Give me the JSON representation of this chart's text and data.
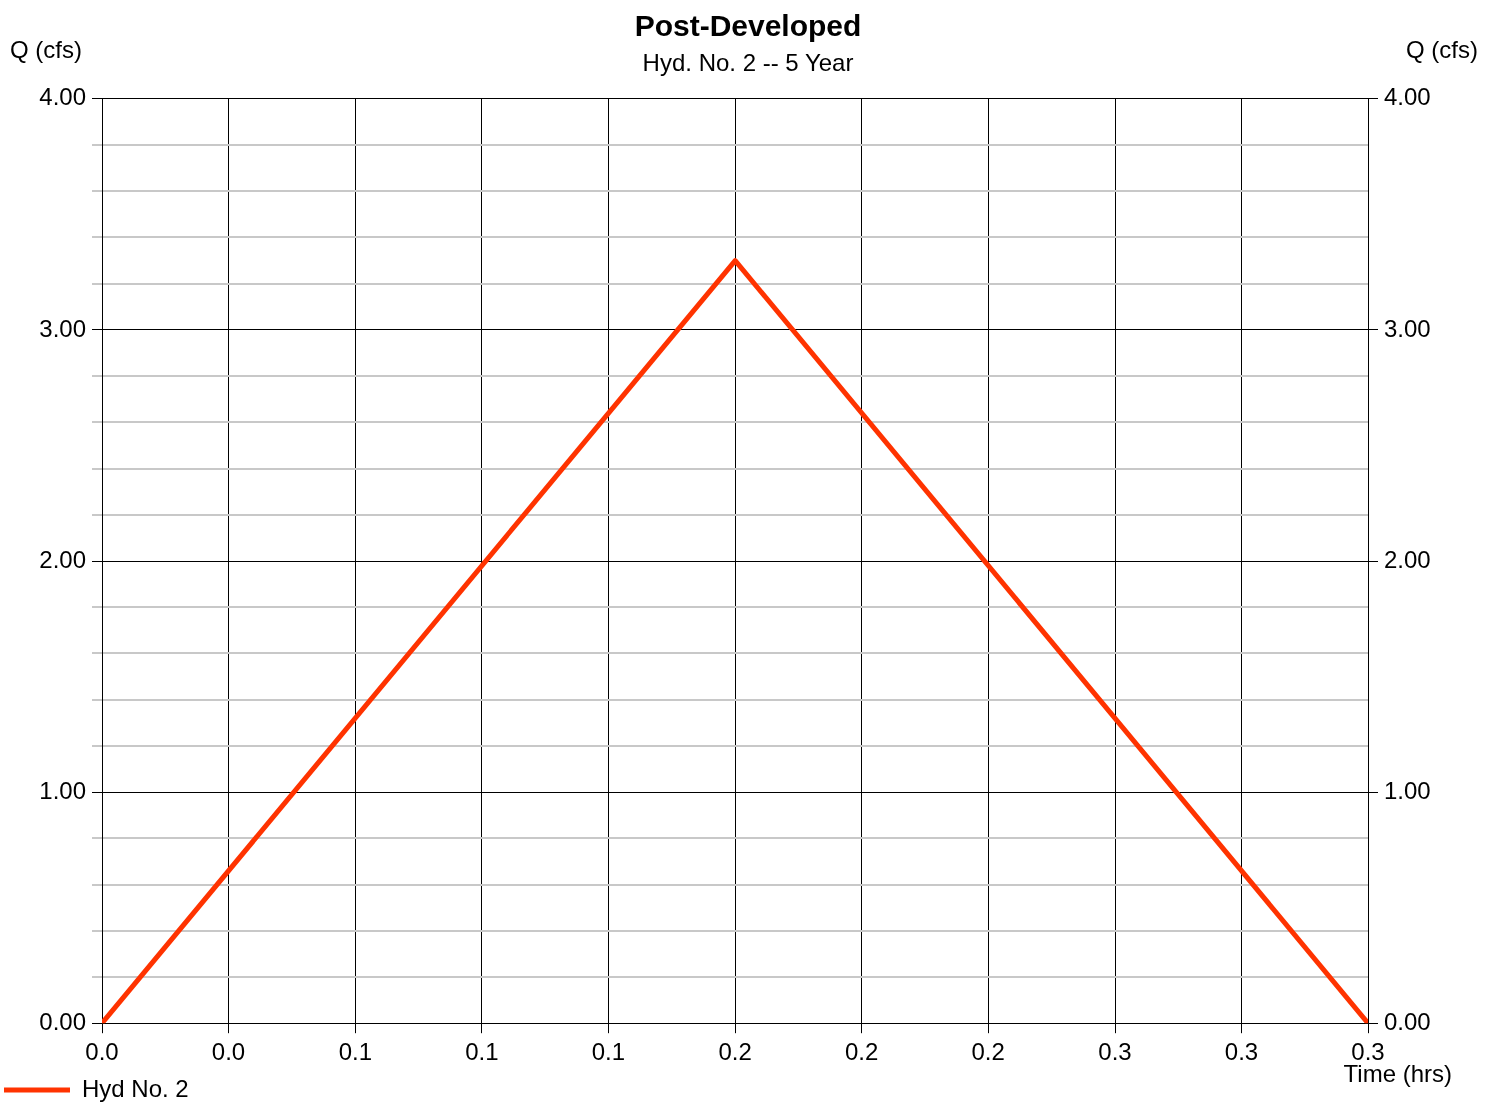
{
  "chart_data": {
    "type": "line",
    "title": "Post-Developed",
    "subtitle": "Hyd. No. 2 -- 5 Year",
    "xlabel": "Time (hrs)",
    "ylabel": "Q (cfs)",
    "y2label": "Q (cfs)",
    "x": [
      0,
      0.1667,
      0.3333
    ],
    "series": [
      {
        "name": "Hyd No. 2",
        "color": "#ff3300",
        "values": [
          0,
          3.3,
          0
        ]
      }
    ],
    "xlim": [
      0,
      0.3333
    ],
    "xticks": [
      {
        "value": 0,
        "label": "0.0"
      },
      {
        "value": 0.0333,
        "label": "0.0"
      },
      {
        "value": 0.0667,
        "label": "0.1"
      },
      {
        "value": 0.1,
        "label": "0.1"
      },
      {
        "value": 0.1333,
        "label": "0.1"
      },
      {
        "value": 0.1667,
        "label": "0.2"
      },
      {
        "value": 0.2,
        "label": "0.2"
      },
      {
        "value": 0.2333,
        "label": "0.2"
      },
      {
        "value": 0.2667,
        "label": "0.3"
      },
      {
        "value": 0.3,
        "label": "0.3"
      },
      {
        "value": 0.3333,
        "label": "0.3"
      }
    ],
    "ylim": [
      0,
      4
    ],
    "yticks": [
      {
        "value": 0,
        "label": "0.00"
      },
      {
        "value": 0.2,
        "label": null
      },
      {
        "value": 0.4,
        "label": null
      },
      {
        "value": 0.6,
        "label": null
      },
      {
        "value": 0.8,
        "label": null
      },
      {
        "value": 1,
        "label": "1.00"
      },
      {
        "value": 1.2,
        "label": null
      },
      {
        "value": 1.4,
        "label": null
      },
      {
        "value": 1.6,
        "label": null
      },
      {
        "value": 1.8,
        "label": null
      },
      {
        "value": 2,
        "label": "2.00"
      },
      {
        "value": 2.2,
        "label": null
      },
      {
        "value": 2.4,
        "label": null
      },
      {
        "value": 2.6,
        "label": null
      },
      {
        "value": 2.8,
        "label": null
      },
      {
        "value": 3,
        "label": "3.00"
      },
      {
        "value": 3.2,
        "label": null
      },
      {
        "value": 3.4,
        "label": null
      },
      {
        "value": 3.6,
        "label": null
      },
      {
        "value": 3.8,
        "label": null
      },
      {
        "value": 4,
        "label": "4.00"
      }
    ],
    "y2lim": [
      0,
      4
    ],
    "y2ticks": [
      {
        "value": 0,
        "label": "0.00"
      },
      {
        "value": 1,
        "label": "1.00"
      },
      {
        "value": 2,
        "label": "2.00"
      },
      {
        "value": 3,
        "label": "3.00"
      },
      {
        "value": 4,
        "label": "4.00"
      }
    ],
    "grid": true,
    "legend": "bottom left",
    "marker": "none",
    "line_style": "solid"
  }
}
